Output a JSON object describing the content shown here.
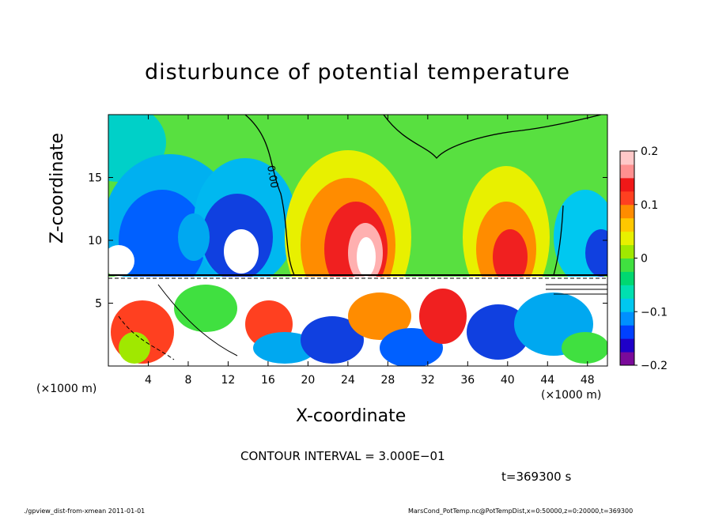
{
  "chart_data": {
    "type": "heatmap",
    "title": "disturbunce of potential temperature",
    "xlabel": "X-coordinate",
    "ylabel": "Z-coordinate",
    "x_unit_label": "(×1000 m)",
    "x_ticks": [
      4,
      8,
      12,
      16,
      20,
      24,
      28,
      32,
      36,
      40,
      44,
      48
    ],
    "y_ticks": [
      5,
      10,
      15
    ],
    "xlim": [
      0,
      50
    ],
    "ylim": [
      0,
      20
    ],
    "colorbar": {
      "ticks": [
        "0.2",
        "0.1",
        "0",
        "−0.1",
        "−0.2"
      ],
      "tick_values": [
        0.2,
        0.1,
        0,
        -0.1,
        -0.2
      ],
      "range": [
        -0.2,
        0.2
      ],
      "colors": [
        "#7a0a9a",
        "#1f00c8",
        "#0040ff",
        "#0090ff",
        "#00c8f0",
        "#00e0b0",
        "#00d870",
        "#40e040",
        "#a0e800",
        "#e8f000",
        "#ffc800",
        "#ff8c00",
        "#ff4020",
        "#f01818",
        "#ff9090",
        "#ffc8c8"
      ]
    },
    "contour_label": "0.00",
    "contour_interval_text": "CONTOUR INTERVAL = 3.000E−01",
    "time_text": "t=369300 s"
  },
  "footer": {
    "left": "./gpview_dist-from-xmean   2011-01-01",
    "right": "MarsCond_PotTemp.nc@PotTempDist,x=0:50000,z=0:20000,t=369300"
  }
}
